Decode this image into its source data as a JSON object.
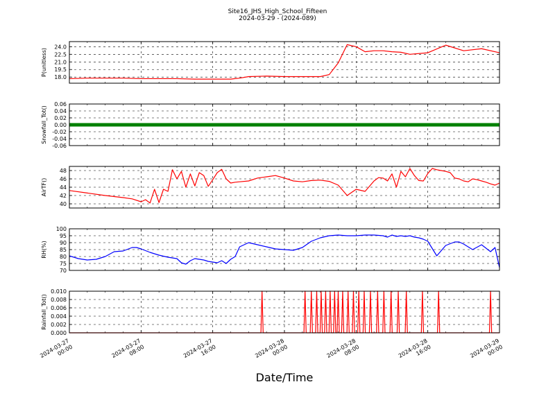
{
  "chart_data": {
    "type": "line",
    "title": "Site16_JHS_High_School_Fifteen",
    "subtitle": "2024-03-29 - (2024-089)",
    "xlabel": "Date/Time",
    "x_ticks": [
      {
        "l1": "2024-03-27",
        "l2": "00:00"
      },
      {
        "l1": "2024-03-27",
        "l2": "08:00"
      },
      {
        "l1": "2024-03-27",
        "l2": "16:00"
      },
      {
        "l1": "2024-03-28",
        "l2": "00:00"
      },
      {
        "l1": "2024-03-28",
        "l2": "08:00"
      },
      {
        "l1": "2024-03-28",
        "l2": "16:00"
      },
      {
        "l1": "2024-03-29",
        "l2": "00:00"
      }
    ],
    "x_range": [
      "2024-03-27 00:00",
      "2024-03-29 00:00"
    ],
    "x_unit": "hours",
    "grid": true,
    "panels": [
      {
        "ylabel": "P(unitless)",
        "ylim": [
          16.8,
          25.0
        ],
        "yticks": [
          "18.0",
          "19.5",
          "21.0",
          "22.5",
          "24.0"
        ],
        "ytick_values": [
          18.0,
          19.5,
          21.0,
          22.5,
          24.0
        ],
        "color": "#ff0000",
        "style": "line",
        "x": [
          0,
          2,
          4,
          6,
          8,
          10,
          12,
          14,
          16,
          18,
          19,
          20,
          22,
          24,
          26,
          28,
          29,
          30,
          31,
          32,
          33,
          34,
          35,
          36,
          37,
          38,
          40,
          42,
          44,
          46,
          48
        ],
        "values": [
          17.7,
          17.8,
          17.8,
          17.8,
          17.7,
          17.7,
          17.7,
          17.6,
          17.6,
          17.6,
          17.8,
          18.1,
          18.2,
          18.1,
          18.1,
          18.1,
          18.5,
          20.8,
          24.4,
          24.0,
          23.0,
          23.2,
          23.2,
          23.0,
          22.9,
          22.5,
          22.8,
          24.3,
          23.2,
          23.6,
          22.8
        ]
      },
      {
        "ylabel": "Snowfall_Tot()",
        "ylim": [
          -0.06,
          0.06
        ],
        "yticks": [
          "0.06",
          "0.04",
          "0.02",
          "0.00",
          "-0.02",
          "-0.04",
          "-0.06"
        ],
        "ytick_values": [
          0.06,
          0.04,
          0.02,
          0.0,
          -0.02,
          -0.04,
          -0.06
        ],
        "color": "#008000",
        "style": "thick",
        "x": [
          0,
          48
        ],
        "values": [
          0.0,
          0.0
        ]
      },
      {
        "ylabel": "AirTF()",
        "ylim": [
          39,
          49
        ],
        "yticks": [
          "48",
          "46",
          "44",
          "42",
          "40"
        ],
        "ytick_values": [
          48,
          46,
          44,
          42,
          40
        ],
        "color": "#ff0000",
        "style": "line",
        "x": [
          0,
          2,
          4,
          6,
          7,
          8,
          8.5,
          9,
          9.5,
          10,
          10.5,
          11,
          11.5,
          12,
          12.5,
          13,
          13.5,
          14,
          14.5,
          15,
          15.5,
          16,
          16.5,
          17,
          17.5,
          18,
          18.5,
          19,
          20,
          21,
          22,
          23,
          24,
          25,
          26,
          27,
          28,
          29,
          30,
          31,
          32,
          33,
          34,
          34.5,
          35,
          35.5,
          36,
          36.5,
          37,
          37.5,
          38,
          38.5,
          39,
          39.5,
          40,
          40.5,
          41,
          41.5,
          42,
          42.5,
          43,
          43.5,
          44,
          44.5,
          45,
          45.5,
          46,
          46.5,
          47,
          47.5,
          48
        ],
        "values": [
          43.2,
          42.6,
          42.0,
          41.5,
          41.2,
          40.5,
          41.0,
          40.2,
          43.5,
          40.3,
          43.5,
          43.0,
          48.2,
          46.0,
          47.8,
          44.0,
          47.2,
          44.3,
          47.5,
          46.8,
          44.2,
          45.8,
          47.5,
          48.3,
          46.0,
          45.0,
          45.2,
          45.3,
          45.5,
          46.2,
          46.5,
          46.8,
          46.2,
          45.5,
          45.3,
          45.6,
          45.7,
          45.4,
          44.5,
          42.0,
          43.5,
          43.0,
          45.5,
          46.3,
          46.2,
          45.5,
          47.2,
          44.0,
          47.8,
          46.5,
          48.5,
          46.8,
          45.6,
          45.5,
          47.3,
          48.5,
          48.2,
          48.0,
          47.8,
          47.5,
          46.2,
          46.0,
          45.5,
          45.3,
          46.0,
          45.8,
          45.5,
          45.2,
          44.8,
          44.5,
          45.0
        ]
      },
      {
        "ylabel": "RH(%)",
        "ylim": [
          70,
          100
        ],
        "yticks": [
          "100",
          "95",
          "90",
          "85",
          "80",
          "75",
          "70"
        ],
        "ytick_values": [
          100,
          95,
          90,
          85,
          80,
          75,
          70
        ],
        "color": "#0000ff",
        "style": "line",
        "x": [
          0,
          1,
          2,
          3,
          4,
          5,
          6,
          7,
          7.5,
          8,
          9,
          10,
          11,
          11.5,
          12,
          12.5,
          13,
          13.5,
          14,
          14.5,
          15,
          15.5,
          16,
          16.5,
          17,
          17.5,
          18,
          18.5,
          19,
          20,
          21,
          22,
          23,
          24,
          25,
          26,
          27,
          28,
          29,
          30,
          31,
          32,
          33,
          34,
          35,
          35.5,
          36,
          36.5,
          37,
          37.5,
          38,
          38.5,
          39,
          39.5,
          40,
          41,
          42,
          43,
          43.5,
          44,
          45,
          46,
          47,
          47.5,
          48
        ],
        "values": [
          80.5,
          78.5,
          77.5,
          78.0,
          80.0,
          83.5,
          84.0,
          86.5,
          86.5,
          85.5,
          83.0,
          81.0,
          79.5,
          79.0,
          78.5,
          75.5,
          74.5,
          77.0,
          78.5,
          78.0,
          77.5,
          76.5,
          76.0,
          75.5,
          77.0,
          75.0,
          78.0,
          80.0,
          87.0,
          90.0,
          88.5,
          87.0,
          85.5,
          85.0,
          84.5,
          86.5,
          91.0,
          93.5,
          95.0,
          95.5,
          95.0,
          95.0,
          95.5,
          95.5,
          95.0,
          94.0,
          95.5,
          94.5,
          95.0,
          94.5,
          95.0,
          94.0,
          93.5,
          92.5,
          91.0,
          80.5,
          88.0,
          90.5,
          90.5,
          89.0,
          85.0,
          88.5,
          83.5,
          86.5,
          72.0
        ]
      },
      {
        "ylabel": "Rainfall_Tot()",
        "ylim": [
          0,
          0.01
        ],
        "yticks": [
          "0.010",
          "0.008",
          "0.006",
          "0.004",
          "0.002",
          "0.000"
        ],
        "ytick_values": [
          0.01,
          0.008,
          0.006,
          0.004,
          0.002,
          0.0
        ],
        "color": "#ff0000",
        "style": "spikes",
        "x": [
          21.5,
          26.3,
          27.0,
          27.6,
          28.1,
          28.6,
          29.1,
          29.6,
          30.0,
          30.5,
          31.1,
          31.7,
          32.3,
          32.9,
          33.6,
          34.4,
          35.1,
          35.9,
          36.7,
          37.6,
          39.4,
          41.2,
          47.0
        ],
        "values": [
          0.01,
          0.01,
          0.01,
          0.01,
          0.01,
          0.01,
          0.01,
          0.01,
          0.01,
          0.01,
          0.01,
          0.01,
          0.01,
          0.01,
          0.01,
          0.01,
          0.01,
          0.01,
          0.01,
          0.01,
          0.01,
          0.01,
          0.01
        ]
      }
    ]
  }
}
